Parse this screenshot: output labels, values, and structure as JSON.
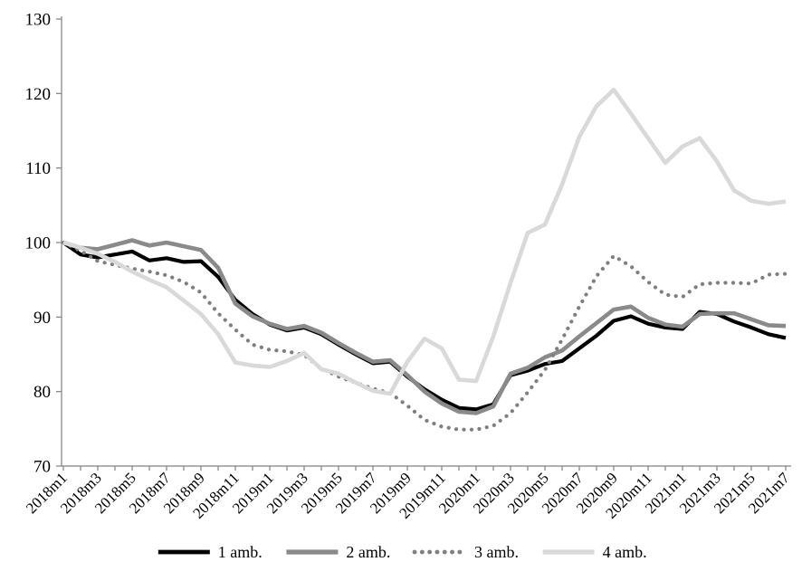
{
  "chart_data": {
    "type": "line",
    "title": "",
    "xlabel": "",
    "ylabel": "",
    "ylim": [
      70,
      130
    ],
    "y_ticks": [
      70,
      80,
      90,
      100,
      110,
      120,
      130
    ],
    "grid": false,
    "legend_position": "bottom",
    "axis_color": "#808080",
    "text_color": "#000000",
    "background_color": "#ffffff",
    "x_tick_label_every": 2,
    "categories": [
      "2018m1",
      "2018m2",
      "2018m3",
      "2018m4",
      "2018m5",
      "2018m6",
      "2018m7",
      "2018m8",
      "2018m9",
      "2018m10",
      "2018m11",
      "2018m12",
      "2019m1",
      "2019m2",
      "2019m3",
      "2019m4",
      "2019m5",
      "2019m6",
      "2019m7",
      "2019m8",
      "2019m9",
      "2019m10",
      "2019m11",
      "2019m12",
      "2020m1",
      "2020m2",
      "2020m3",
      "2020m4",
      "2020m5",
      "2020m6",
      "2020m7",
      "2020m8",
      "2020m9",
      "2020m10",
      "2020m11",
      "2020m12",
      "2021m1",
      "2021m2",
      "2021m3",
      "2021m4",
      "2021m5",
      "2021m6",
      "2021m7"
    ],
    "series": [
      {
        "name": "1 amb.",
        "color": "#000000",
        "style": "solid",
        "width": 4.2,
        "values": [
          100,
          98.4,
          98.0,
          98.4,
          98.8,
          97.6,
          97.9,
          97.4,
          97.5,
          95.4,
          92.3,
          90.4,
          89.0,
          88.2,
          88.6,
          87.7,
          86.3,
          85.0,
          83.8,
          84.0,
          82.0,
          80.3,
          78.9,
          77.8,
          77.6,
          78.3,
          82.2,
          82.8,
          83.7,
          84.1,
          85.8,
          87.5,
          89.5,
          90.1,
          89.1,
          88.6,
          88.4,
          90.7,
          90.4,
          89.4,
          88.6,
          87.7,
          87.2
        ]
      },
      {
        "name": "2 amb.",
        "color": "#8a8a8a",
        "style": "solid",
        "width": 4.6,
        "values": [
          100,
          99.3,
          99.1,
          99.7,
          100.3,
          99.6,
          100.0,
          99.5,
          99.0,
          96.6,
          91.8,
          90.1,
          89.1,
          88.4,
          88.8,
          87.9,
          86.5,
          85.2,
          84.0,
          84.2,
          82.2,
          80.0,
          78.4,
          77.3,
          77.1,
          78.0,
          82.4,
          83.2,
          84.6,
          85.5,
          87.4,
          89.2,
          91.0,
          91.4,
          89.9,
          89.0,
          88.7,
          90.4,
          90.5,
          90.5,
          89.7,
          88.9,
          88.8
        ]
      },
      {
        "name": "3 amb.",
        "color": "#7f7f7f",
        "style": "dotted",
        "width": 4.2,
        "values": [
          100,
          98.9,
          97.5,
          97.0,
          96.5,
          96.1,
          95.6,
          94.7,
          93.3,
          90.5,
          88.3,
          86.3,
          85.6,
          85.4,
          84.9,
          83.1,
          82.0,
          81.2,
          80.4,
          79.8,
          78.1,
          76.2,
          75.3,
          74.9,
          74.9,
          75.4,
          77.1,
          79.9,
          82.9,
          87.0,
          91.4,
          95.5,
          98.2,
          96.8,
          94.7,
          93.0,
          92.7,
          94.4,
          94.6,
          94.6,
          94.5,
          95.7,
          95.8
        ]
      },
      {
        "name": "4 amb.",
        "color": "#d9d9d9",
        "style": "solid",
        "width": 4.6,
        "values": [
          100,
          99.3,
          98.5,
          97.4,
          96.1,
          95.0,
          94.0,
          92.2,
          90.4,
          87.7,
          83.9,
          83.5,
          83.3,
          84.1,
          85.2,
          83.0,
          82.4,
          81.2,
          80.1,
          79.7,
          84.0,
          87.1,
          85.8,
          81.6,
          81.4,
          87.4,
          94.6,
          101.3,
          102.4,
          107.8,
          114.2,
          118.3,
          120.5,
          117.3,
          114.0,
          110.7,
          112.9,
          114.0,
          110.9,
          107.0,
          105.6,
          105.2,
          105.5
        ]
      }
    ]
  }
}
